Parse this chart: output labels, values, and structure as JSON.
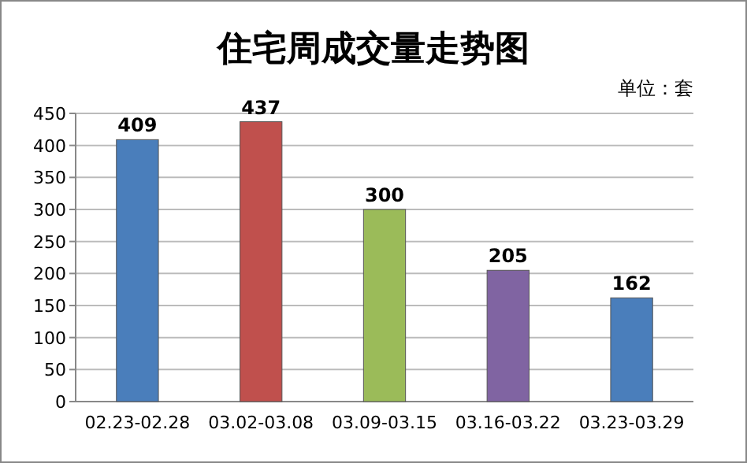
{
  "chart_data": {
    "type": "bar",
    "title": "住宅周成交量走势图",
    "annotations": [
      "单位：套"
    ],
    "categories": [
      "02.23-02.28",
      "03.02-03.08",
      "03.09-03.15",
      "03.16-03.22",
      "03.23-03.29"
    ],
    "values": [
      409,
      437,
      300,
      205,
      162
    ],
    "colors": [
      "#4a7ebb",
      "#c0504d",
      "#9bbb59",
      "#8064a2",
      "#4a7ebb"
    ],
    "ylim": [
      0,
      450
    ],
    "yticks": [
      0,
      50,
      100,
      150,
      200,
      250,
      300,
      350,
      400,
      450
    ],
    "grid": "y",
    "data_labels": true
  }
}
